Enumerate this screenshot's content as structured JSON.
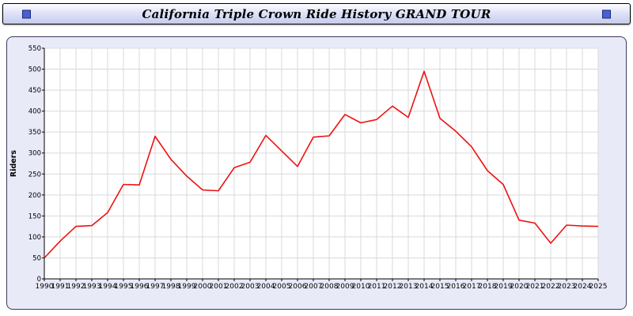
{
  "header": {
    "title": "California Triple Crown Ride History GRAND TOUR"
  },
  "panel": {
    "background": "#e9eaf8",
    "border_color": "#3a3a5e"
  },
  "chart_data": {
    "type": "line",
    "title": "California Triple Crown Ride History GRAND TOUR",
    "xlabel": "",
    "ylabel": "Riders",
    "ylim": [
      0,
      550
    ],
    "ytick_step": 50,
    "grid": true,
    "legend": "none",
    "plot_background": "#ffffff",
    "grid_color": "#d9d9d9",
    "axis_color": "#000000",
    "x": [
      1990,
      1991,
      1992,
      1993,
      1994,
      1995,
      1996,
      1997,
      1998,
      1999,
      2000,
      2001,
      2002,
      2003,
      2004,
      2005,
      2006,
      2007,
      2008,
      2009,
      2010,
      2011,
      2012,
      2013,
      2014,
      2015,
      2016,
      2017,
      2018,
      2019,
      2020,
      2021,
      2022,
      2023,
      2024,
      2025
    ],
    "series": [
      {
        "name": "Riders",
        "color": "#ee1111",
        "values": [
          50,
          90,
          125,
          127,
          158,
          225,
          224,
          340,
          285,
          245,
          212,
          210,
          265,
          278,
          342,
          305,
          268,
          338,
          341,
          392,
          372,
          380,
          412,
          385,
          495,
          383,
          352,
          315,
          258,
          225,
          140,
          133,
          85,
          128,
          126,
          125
        ]
      }
    ]
  }
}
